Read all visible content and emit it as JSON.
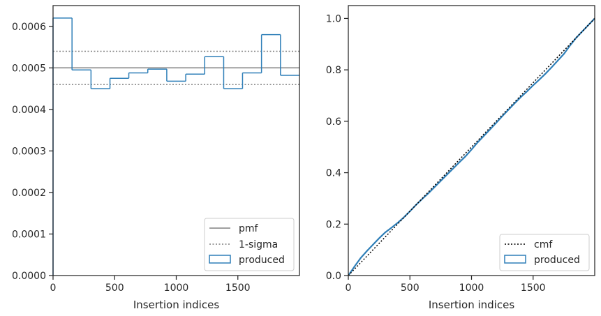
{
  "colors": {
    "hist": "#2f7fb8",
    "pmf": "#808080",
    "sigma": "#808080",
    "cmf": "#000000",
    "axes": "#262626"
  },
  "chart_data": [
    {
      "type": "step-histogram",
      "xlabel": "Insertion indices",
      "ylabel": "",
      "xlim": [
        0,
        2000
      ],
      "ylim": [
        0,
        0.00065
      ],
      "xticks": [
        0,
        500,
        1000,
        1500
      ],
      "xtick_labels": [
        "0",
        "500",
        "1000",
        "1500"
      ],
      "yticks": [
        0,
        0.0001,
        0.0002,
        0.0003,
        0.0004,
        0.0005,
        0.0006
      ],
      "ytick_labels": [
        "0.0000",
        "0.0001",
        "0.0002",
        "0.0003",
        "0.0004",
        "0.0005",
        "0.0006"
      ],
      "bin_edges": [
        0,
        154,
        308,
        462,
        615,
        769,
        923,
        1077,
        1231,
        1385,
        1538,
        1692,
        1846,
        2000
      ],
      "values": [
        0.00062,
        0.000495,
        0.00045,
        0.000475,
        0.000488,
        0.000497,
        0.000468,
        0.000485,
        0.000527,
        0.00045,
        0.000488,
        0.00058,
        0.000482
      ],
      "pmf": 0.0005,
      "sigma": [
        0.00046,
        0.00054
      ],
      "legend_position": "lower-right",
      "legend": [
        {
          "label": "pmf",
          "style": "solid"
        },
        {
          "label": "1-sigma",
          "style": "dotted"
        },
        {
          "label": "produced",
          "style": "patch"
        }
      ]
    },
    {
      "type": "line",
      "xlabel": "Insertion indices",
      "ylabel": "",
      "xlim": [
        0,
        2000
      ],
      "ylim": [
        0,
        1.05
      ],
      "xticks": [
        0,
        500,
        1000,
        1500
      ],
      "xtick_labels": [
        "0",
        "500",
        "1000",
        "1500"
      ],
      "yticks": [
        0,
        0.2,
        0.4,
        0.6,
        0.8,
        1.0
      ],
      "ytick_labels": [
        "0.0",
        "0.2",
        "0.4",
        "0.6",
        "0.8",
        "1.0"
      ],
      "cmf": {
        "x": [
          0,
          2000
        ],
        "y": [
          0,
          1
        ]
      },
      "produced": {
        "x": [
          0,
          50,
          100,
          150,
          200,
          250,
          300,
          350,
          400,
          450,
          500,
          550,
          600,
          650,
          700,
          750,
          800,
          850,
          900,
          950,
          1000,
          1050,
          1100,
          1150,
          1200,
          1250,
          1300,
          1350,
          1400,
          1450,
          1500,
          1550,
          1600,
          1650,
          1700,
          1750,
          1800,
          1850,
          1900,
          1950,
          2000
        ],
        "y": [
          0,
          0.035,
          0.068,
          0.095,
          0.12,
          0.145,
          0.168,
          0.186,
          0.205,
          0.226,
          0.25,
          0.275,
          0.298,
          0.32,
          0.344,
          0.368,
          0.392,
          0.416,
          0.44,
          0.463,
          0.49,
          0.518,
          0.543,
          0.568,
          0.594,
          0.62,
          0.645,
          0.67,
          0.694,
          0.716,
          0.74,
          0.762,
          0.785,
          0.81,
          0.836,
          0.862,
          0.895,
          0.925,
          0.95,
          0.975,
          1.0
        ]
      },
      "legend_position": "lower-right",
      "legend": [
        {
          "label": "cmf",
          "style": "dotted"
        },
        {
          "label": "produced",
          "style": "patch"
        }
      ]
    }
  ]
}
